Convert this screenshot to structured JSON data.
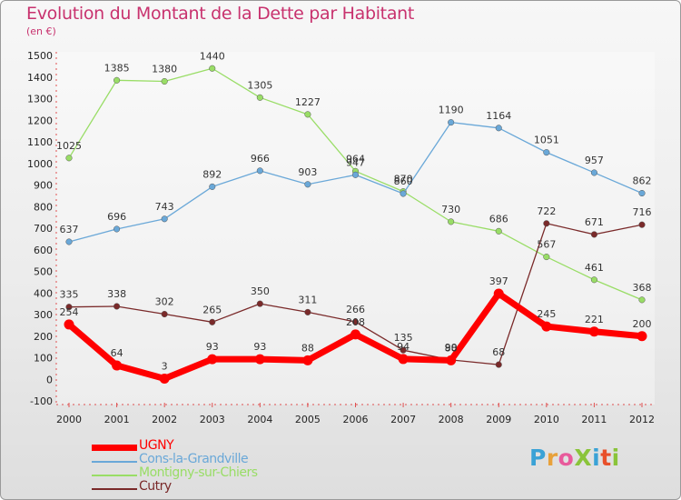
{
  "title": "Evolution du Montant de la Dette par Habitant",
  "subtitle": "(en €)",
  "logo": {
    "text": "ProXiti",
    "colors": [
      "#3aa2d6",
      "#e8a13a",
      "#e85a9b",
      "#8ac43a",
      "#3aa2d6",
      "#e8502a",
      "#8ac43a"
    ]
  },
  "chart_data": {
    "type": "line",
    "title": "Evolution du Montant de la Dette par Habitant",
    "subtitle": "(en €)",
    "xlabel": "",
    "ylabel": "",
    "x": [
      "2000",
      "2001",
      "2002",
      "2003",
      "2004",
      "2005",
      "2006",
      "2007",
      "2008",
      "2009",
      "2010",
      "2011",
      "2012"
    ],
    "ylim": [
      -100,
      1500
    ],
    "yticks": [
      -100,
      0,
      100,
      200,
      300,
      400,
      500,
      600,
      700,
      800,
      900,
      1000,
      1100,
      1200,
      1300,
      1400,
      1500
    ],
    "grid": false,
    "legend_position": "bottom-left",
    "series": [
      {
        "name": "UGNY",
        "color": "#ff0000",
        "values": [
          254,
          64,
          3,
          93,
          93,
          88,
          208,
          94,
          88,
          397,
          245,
          221,
          200
        ],
        "labels": [
          "254",
          "64",
          "3",
          "93",
          "93",
          "88",
          "208",
          "94",
          "88",
          "397",
          "245",
          "221",
          "200"
        ]
      },
      {
        "name": "Cons-la-Grandville",
        "color": "#6aa8d8",
        "values": [
          637,
          696,
          743,
          892,
          966,
          903,
          947,
          860,
          1190,
          1164,
          1051,
          957,
          862
        ],
        "labels": [
          "637",
          "696",
          "743",
          "892",
          "966",
          "903",
          "947",
          "860",
          "1190",
          "1164",
          "1051",
          "957",
          "862"
        ]
      },
      {
        "name": "Montigny-sur-Chiers",
        "color": "#99dd66",
        "values": [
          1025,
          1385,
          1380,
          1440,
          1305,
          1227,
          964,
          870,
          730,
          686,
          567,
          461,
          368
        ],
        "labels": [
          "1025",
          "1385",
          "1380",
          "1440",
          "1305",
          "1227",
          "964",
          "870",
          "730",
          "686",
          "567",
          "461",
          "368"
        ]
      },
      {
        "name": "Cutry",
        "color": "#7a2a2a",
        "values": [
          335,
          338,
          302,
          265,
          350,
          311,
          266,
          135,
          90,
          68,
          722,
          671,
          716
        ],
        "labels": [
          "335",
          "338",
          "302",
          "265",
          "350",
          "311",
          "266",
          "135",
          "90",
          "68",
          "722",
          "671",
          "716"
        ]
      }
    ]
  }
}
